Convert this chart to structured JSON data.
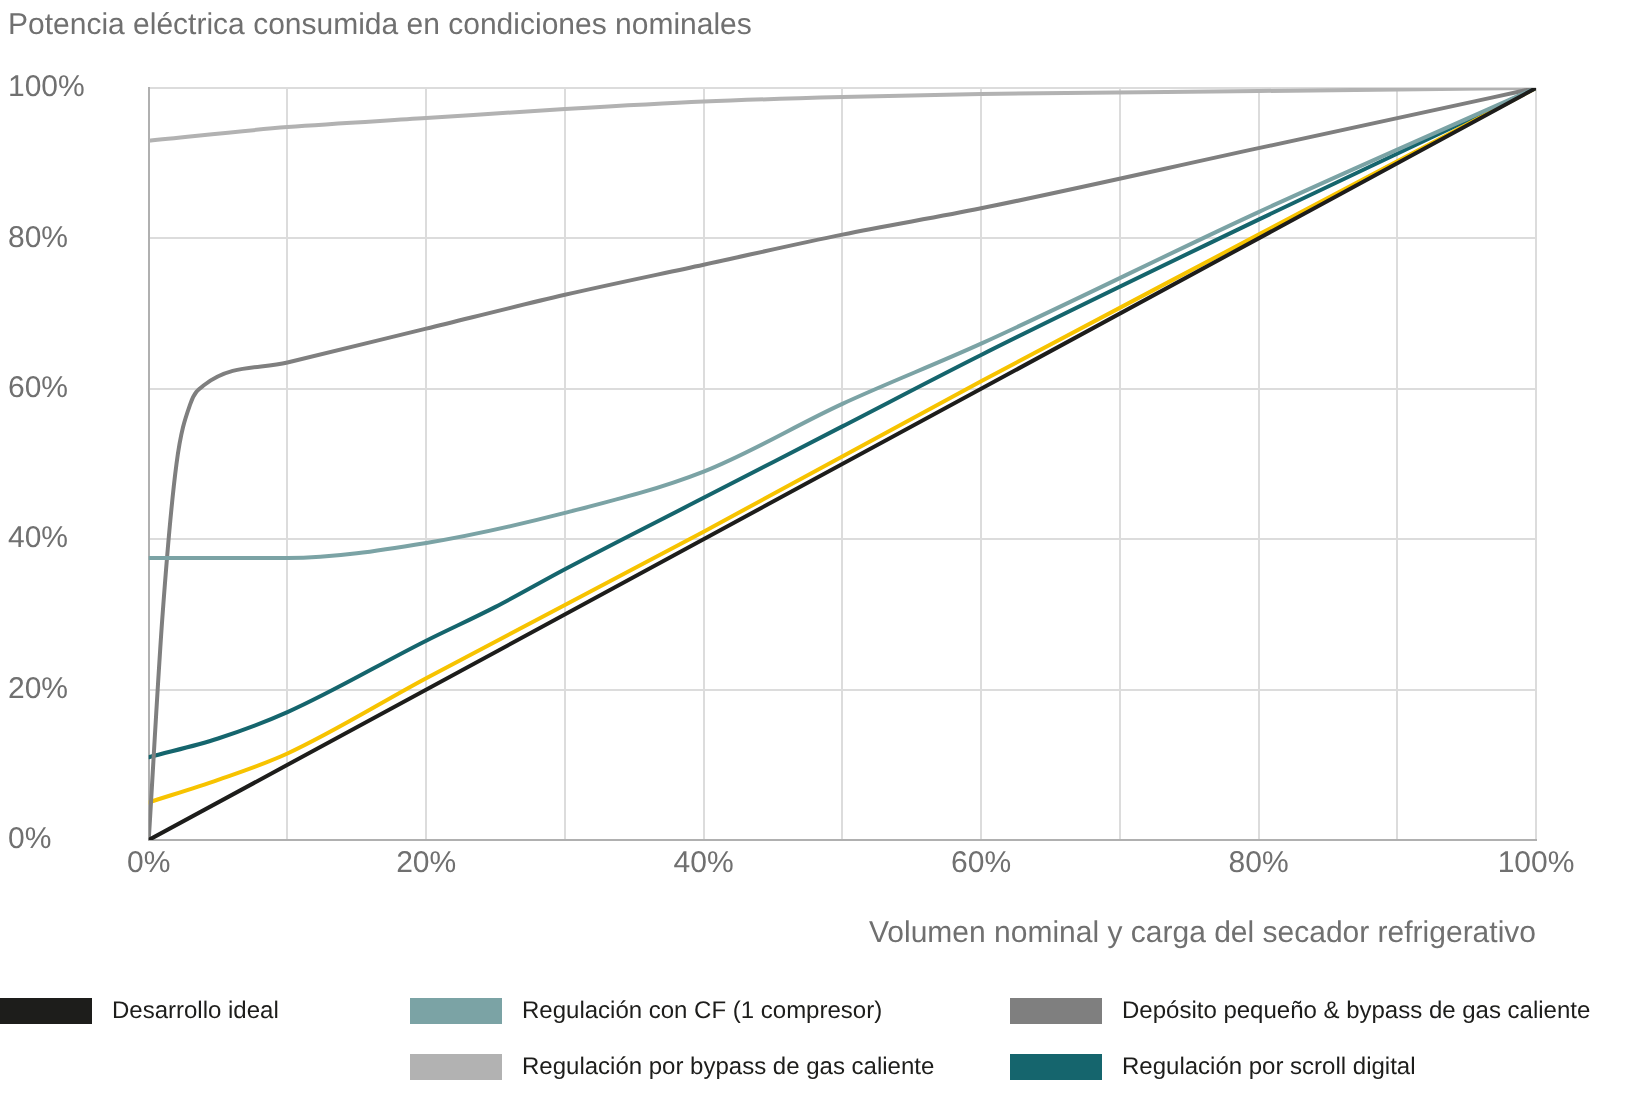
{
  "chart_data": {
    "type": "line",
    "title": "Potencia eléctrica consumida en condiciones nominales",
    "xlabel": "Volumen nominal y carga del secador refrigerativo",
    "xlim": [
      0,
      100
    ],
    "ylim": [
      0,
      100
    ],
    "xticks": [
      {
        "value": 0,
        "label": "0%"
      },
      {
        "value": 10,
        "label": null
      },
      {
        "value": 20,
        "label": "20%"
      },
      {
        "value": 30,
        "label": null
      },
      {
        "value": 40,
        "label": "40%"
      },
      {
        "value": 50,
        "label": null
      },
      {
        "value": 60,
        "label": "60%"
      },
      {
        "value": 70,
        "label": null
      },
      {
        "value": 80,
        "label": "80%"
      },
      {
        "value": 90,
        "label": null
      },
      {
        "value": 100,
        "label": "100%"
      }
    ],
    "yticks": [
      {
        "value": 0,
        "label": "0%"
      },
      {
        "value": 20,
        "label": "20%"
      },
      {
        "value": 40,
        "label": "40%"
      },
      {
        "value": 60,
        "label": "60%"
      },
      {
        "value": 80,
        "label": "80%"
      },
      {
        "value": 100,
        "label": "100%"
      }
    ],
    "grid": true,
    "legend": "bottom",
    "marker": "none",
    "line_style": "solid",
    "series": [
      {
        "name": "Desarrollo ideal",
        "color": "#1d1d1b",
        "x": [
          0,
          100
        ],
        "values": [
          0,
          100
        ]
      },
      {
        "name": "Regulación con CF (1 compresor)",
        "color": "#7ba3a5",
        "x": [
          0,
          10,
          20,
          30,
          40,
          50,
          60,
          80,
          100
        ],
        "values": [
          37.5,
          37.5,
          39.5,
          43.5,
          49,
          58,
          66,
          83.5,
          100
        ]
      },
      {
        "name": "Depósito pequeño & bypass de gas caliente",
        "color": "#7f7f7f",
        "x": [
          0,
          1,
          2,
          3,
          4,
          10,
          20,
          30,
          40,
          50,
          60,
          80,
          100
        ],
        "values": [
          0,
          30,
          50,
          58,
          60.5,
          63.5,
          68,
          72.5,
          76.5,
          80.5,
          84,
          92,
          100
        ]
      },
      {
        "color": "#f7c300",
        "x": [
          0,
          5,
          10,
          20,
          40,
          60,
          80,
          100
        ],
        "values": [
          5,
          8,
          11.5,
          21.5,
          41,
          61,
          80.5,
          100
        ]
      },
      {
        "name": "Regulación por bypass de gas caliente",
        "color": "#b2b2b2",
        "x": [
          0,
          10,
          20,
          30,
          40,
          50,
          60,
          80,
          100
        ],
        "values": [
          93,
          94.8,
          96,
          97.2,
          98.2,
          98.8,
          99.2,
          99.6,
          100
        ]
      },
      {
        "name": "Regulación por scroll digital",
        "color": "#15656d",
        "x": [
          0,
          5,
          10,
          20,
          25,
          30,
          40,
          50,
          60,
          80,
          100
        ],
        "values": [
          11,
          13.5,
          17,
          26.5,
          31,
          36,
          45.5,
          55,
          64.5,
          82.5,
          100
        ]
      }
    ]
  }
}
